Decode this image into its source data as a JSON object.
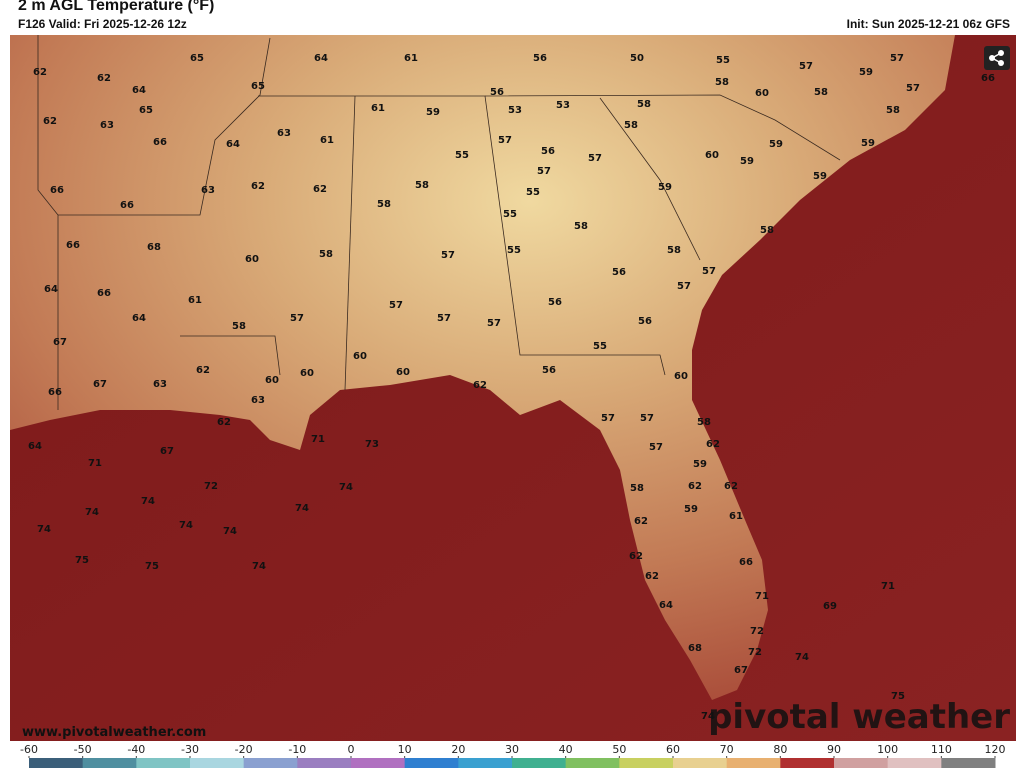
{
  "header": {
    "title": "2 m AGL Temperature (°F)",
    "valid": "F126 Valid: Fri 2025-12-26 12z",
    "init": "Init: Sun 2025-12-21 06z GFS"
  },
  "map": {
    "temperatures": [
      65,
      64,
      61,
      56,
      50,
      55,
      57,
      59,
      57,
      66,
      62,
      62,
      64,
      65,
      58,
      58,
      60,
      58,
      57,
      65,
      62,
      63,
      56,
      61,
      59,
      53,
      53,
      58,
      58,
      63,
      61,
      66,
      64,
      57,
      55,
      56,
      57,
      60,
      59,
      59,
      59,
      66,
      63,
      62,
      62,
      58,
      57,
      55,
      59,
      59,
      66,
      58,
      55,
      58,
      58,
      66,
      68,
      60,
      58,
      57,
      55,
      58,
      56,
      57,
      64,
      66,
      61,
      57,
      56,
      64,
      58,
      57,
      57,
      57,
      57,
      56,
      67,
      55,
      60,
      62,
      60,
      60,
      60,
      56,
      60,
      66,
      67,
      63,
      62,
      63,
      57,
      57,
      58,
      62,
      62,
      64,
      67,
      71,
      73,
      57,
      71,
      59,
      72,
      74,
      58,
      62,
      62,
      74,
      74,
      59,
      61,
      74,
      74,
      74,
      74,
      62,
      75,
      75,
      74,
      62,
      66,
      62,
      71,
      71,
      69,
      64,
      72,
      68,
      72,
      74,
      67,
      75,
      74
    ]
  },
  "footer": {
    "website": "www.pivotalweather.com",
    "logo": "pivotal weather"
  },
  "colorbar": {
    "ticks": [
      -60,
      -50,
      -40,
      -30,
      -20,
      -10,
      0,
      10,
      20,
      30,
      40,
      50,
      60,
      70,
      80,
      90,
      100,
      110,
      120
    ]
  }
}
